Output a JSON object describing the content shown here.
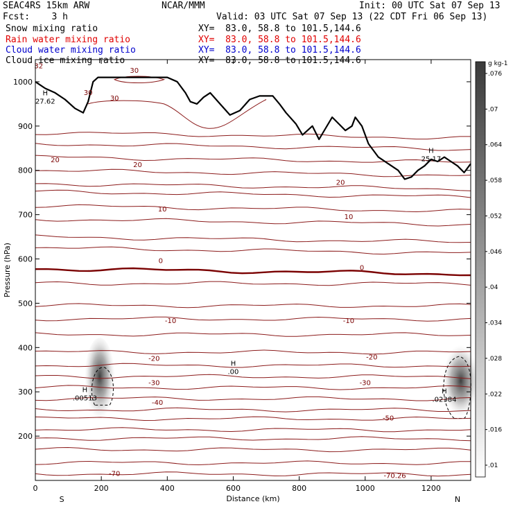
{
  "header": {
    "model": "SEAC4RS 15km ARW",
    "org": "NCAR/MMM",
    "init": "Init: 00 UTC Sat 07 Sep 13",
    "fcst": "Fcst:    3 h",
    "valid": "Valid: 03 UTC Sat 07 Sep 13 (22 CDT Fri 06 Sep 13)",
    "fields": [
      {
        "label": "Snow mixing ratio",
        "xy": "XY=  83.0, 58.8 to 101.5,144.6",
        "color": "#000000"
      },
      {
        "label": "Rain water mixing ratio",
        "xy": "XY=  83.0, 58.8 to 101.5,144.6",
        "color": "#e00000"
      },
      {
        "label": "Cloud water mixing ratio",
        "xy": "XY=  83.0, 58.8 to 101.5,144.6",
        "color": "#0000cc"
      },
      {
        "label": "Cloud ice mixing ratio",
        "xy": "XY=  83.0, 58.8 to 101.5,144.6",
        "color": "#000000"
      }
    ]
  },
  "chart_data": {
    "type": "contour",
    "xlabel": "Distance (km)",
    "ylabel": "Pressure (hPa)",
    "xlim": [
      0,
      1320
    ],
    "ylim": [
      1050,
      100
    ],
    "x_ticks": [
      0,
      200,
      400,
      600,
      800,
      1000,
      1200
    ],
    "y_ticks": [
      200,
      300,
      400,
      500,
      600,
      700,
      800,
      900,
      1000
    ],
    "endpoints": {
      "left": "S",
      "right": "N"
    },
    "colorbar": {
      "unit": "g kg-1",
      "ticks": [
        ".01",
        ".016",
        ".022",
        ".028",
        ".034",
        ".04",
        ".046",
        ".052",
        ".058",
        ".064",
        ".07",
        ".076"
      ]
    },
    "temperature_contours": [
      {
        "value": -70,
        "label": "-70",
        "label_x": 240,
        "pressure": 115
      },
      {
        "value": -50,
        "label": "-50",
        "label_x": 1070,
        "pressure": 240
      },
      {
        "value": -40,
        "label": "-40",
        "label_x": 370,
        "pressure": 275
      },
      {
        "value": -30,
        "label": "-30",
        "label_x": 360,
        "pressure": 320
      },
      {
        "value": -30,
        "label": "-30",
        "label_x": 1000,
        "pressure": 320
      },
      {
        "value": -20,
        "label": "-20",
        "label_x": 360,
        "pressure": 375
      },
      {
        "value": -20,
        "label": "-20",
        "label_x": 1020,
        "pressure": 378
      },
      {
        "value": -10,
        "label": "-10",
        "label_x": 410,
        "pressure": 460
      },
      {
        "value": -10,
        "label": "-10",
        "label_x": 950,
        "pressure": 460
      },
      {
        "value": 0,
        "label": "0",
        "label_x": 380,
        "pressure": 595
      },
      {
        "value": 0,
        "label": "0",
        "label_x": 990,
        "pressure": 580
      },
      {
        "value": 10,
        "label": "10",
        "label_x": 385,
        "pressure": 712
      },
      {
        "value": 10,
        "label": "10",
        "label_x": 950,
        "pressure": 695
      },
      {
        "value": 20,
        "label": "20",
        "label_x": 60,
        "pressure": 823
      },
      {
        "value": 20,
        "label": "20",
        "label_x": 310,
        "pressure": 812
      },
      {
        "value": 20,
        "label": "20",
        "label_x": 925,
        "pressure": 772
      },
      {
        "value": 30,
        "label": "30",
        "label_x": 160,
        "pressure": 975
      },
      {
        "value": 30,
        "label": "30",
        "label_x": 240,
        "pressure": 962
      },
      {
        "value": 30,
        "label": "30",
        "label_x": 300,
        "pressure": 1025
      }
    ],
    "extrema": [
      {
        "label": "H",
        "value": ".00513",
        "x": 150,
        "pressure": 290
      },
      {
        "label": "H",
        "value": ".02384",
        "x": 1240,
        "pressure": 287
      },
      {
        "label": "H",
        "value": ".00",
        "x": 600,
        "pressure": 350
      },
      {
        "label": "H",
        "value": "25.17",
        "x": 1200,
        "pressure": 830
      },
      {
        "label": "H",
        "value": "27.62",
        "x": 30,
        "pressure": 960
      }
    ],
    "top_label": "-70.26",
    "top_label_pos": {
      "x": 1090,
      "pressure": 110
    },
    "bottom_label": "32",
    "bottom_label_pos": {
      "x": 10,
      "pressure": 1035
    },
    "terrain": [
      [
        0,
        1000
      ],
      [
        30,
        985
      ],
      [
        60,
        975
      ],
      [
        90,
        960
      ],
      [
        120,
        940
      ],
      [
        145,
        930
      ],
      [
        160,
        955
      ],
      [
        175,
        1000
      ],
      [
        190,
        1010
      ],
      [
        250,
        1010
      ],
      [
        320,
        1010
      ],
      [
        400,
        1010
      ],
      [
        430,
        1000
      ],
      [
        455,
        975
      ],
      [
        470,
        955
      ],
      [
        490,
        950
      ],
      [
        510,
        965
      ],
      [
        530,
        975
      ],
      [
        560,
        950
      ],
      [
        590,
        925
      ],
      [
        620,
        935
      ],
      [
        650,
        960
      ],
      [
        680,
        968
      ],
      [
        720,
        968
      ],
      [
        740,
        950
      ],
      [
        760,
        930
      ],
      [
        790,
        905
      ],
      [
        810,
        880
      ],
      [
        840,
        900
      ],
      [
        860,
        870
      ],
      [
        880,
        895
      ],
      [
        900,
        920
      ],
      [
        920,
        905
      ],
      [
        940,
        890
      ],
      [
        960,
        900
      ],
      [
        970,
        920
      ],
      [
        990,
        900
      ],
      [
        1010,
        860
      ],
      [
        1040,
        830
      ],
      [
        1070,
        815
      ],
      [
        1100,
        800
      ],
      [
        1120,
        780
      ],
      [
        1140,
        785
      ],
      [
        1160,
        800
      ],
      [
        1180,
        810
      ],
      [
        1200,
        825
      ],
      [
        1220,
        820
      ],
      [
        1240,
        830
      ],
      [
        1260,
        820
      ],
      [
        1280,
        810
      ],
      [
        1300,
        795
      ],
      [
        1320,
        815
      ]
    ]
  }
}
